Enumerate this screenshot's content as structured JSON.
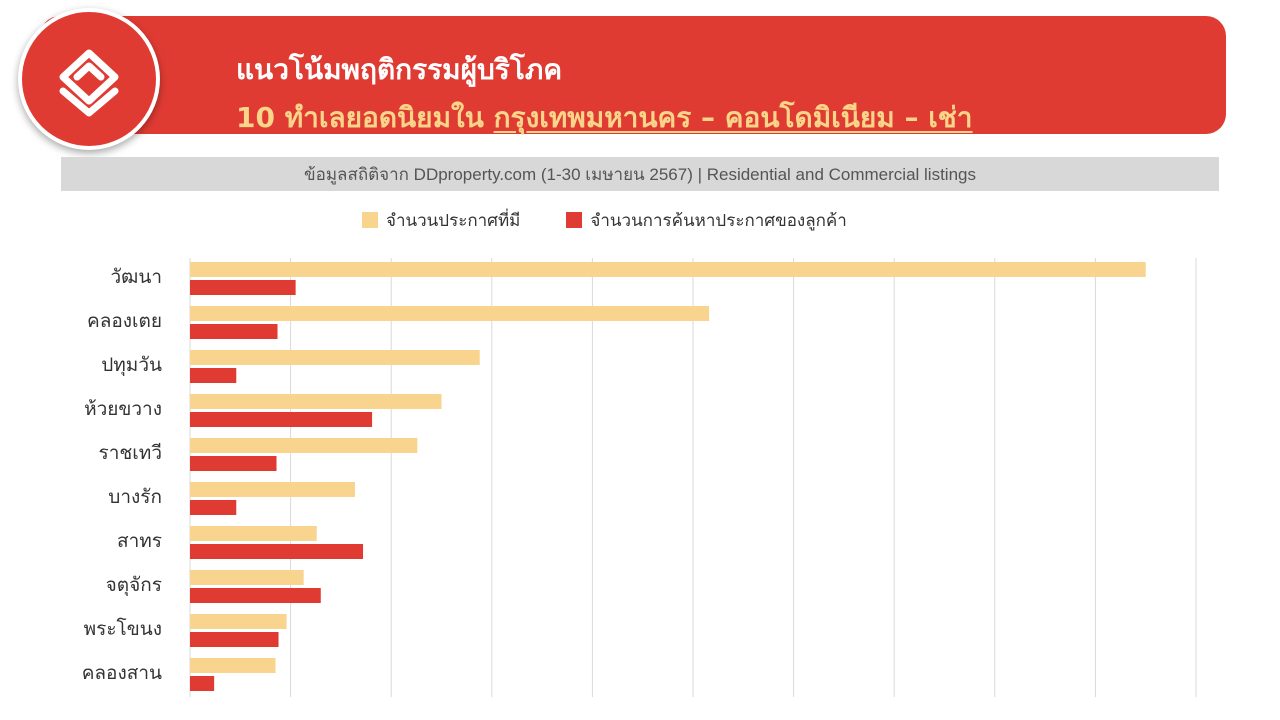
{
  "header": {
    "title": "แนวโน้มพฤติกรรมผู้บริโภค",
    "subtitle_prefix": "10 ทำเลยอดนิยมใน ",
    "subtitle_highlight": "กรุงเทพมหานคร – คอนโดมิเนียม – เช่า",
    "logo": "house-logo-icon"
  },
  "source": "ข้อมูลสถิติจาก DDproperty.com (1-30 เมษายน 2567) | Residential and Commercial listings",
  "colors": {
    "banner": "#e03b33",
    "listings": "#f9d48f",
    "searches": "#e03b33"
  },
  "chart_data": {
    "type": "bar",
    "orientation": "horizontal",
    "categories": [
      "วัฒนา",
      "คลองเตย",
      "ปทุมวัน",
      "ห้วยขวาง",
      "ราชเทวี",
      "บางรัก",
      "สาทร",
      "จตุจักร",
      "พระโขนง",
      "คลองสาน"
    ],
    "series": [
      {
        "name": "จำนวนประกาศที่มี",
        "values": [
          9.5,
          5.16,
          2.88,
          2.5,
          2.26,
          1.64,
          1.26,
          1.13,
          0.96,
          0.85
        ]
      },
      {
        "name": "จำนวนการค้นหาประกาศของลูกค้า",
        "values": [
          1.05,
          0.87,
          0.46,
          1.81,
          0.86,
          0.46,
          1.72,
          1.3,
          0.88,
          0.24
        ]
      }
    ],
    "xlim": [
      0,
      10
    ],
    "grid": true,
    "legend": "top",
    "axis_labels_shown": false
  }
}
